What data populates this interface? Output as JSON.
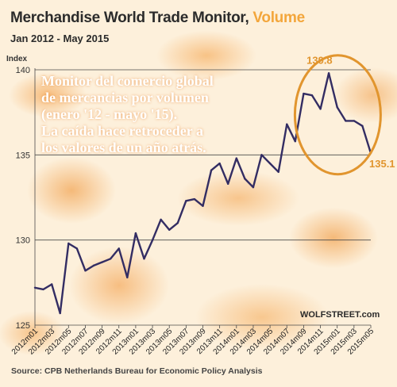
{
  "title_main": "Merchandise World Trade Monitor,",
  "title_emph": "Volume",
  "subtitle": "Jan 2012 - May 2015",
  "source": "Source: CPB Netherlands Bureau for Economic Policy Analysis",
  "brand": "WOLFSTREET.com",
  "note_lines": [
    "Monitor del comercio global",
    "de mercancias por volumen",
    "(enero '12 - mayo '15).",
    "La caída hace retroceder a",
    "los valores de un año atrás."
  ],
  "colors": {
    "line": "#332d63",
    "accent": "#e1952e",
    "grid": "#4a4a4a"
  },
  "chart_data": {
    "type": "line",
    "ylabel": "Index",
    "ylim": [
      125,
      140
    ],
    "yticks": [
      125,
      130,
      135,
      140
    ],
    "grid": true,
    "x_tick_labels": [
      "2012m01",
      "2012m03",
      "2012m05",
      "2012m07",
      "2012m09",
      "2012m11",
      "2013m01",
      "2013m03",
      "2013m05",
      "2013m07",
      "2013m09",
      "2013m11",
      "2014m01",
      "2014m03",
      "2014m05",
      "2014m07",
      "2014m09",
      "2014m11",
      "2015m01",
      "2015m03",
      "2015m05"
    ],
    "series": [
      {
        "values": [
          127.2,
          127.1,
          127.4,
          125.7,
          129.8,
          129.5,
          128.2,
          128.5,
          128.7,
          128.9,
          129.5,
          127.8,
          130.4,
          128.9,
          130.0,
          131.2,
          130.6,
          131.0,
          132.3,
          132.4,
          132.0,
          134.1,
          134.5,
          133.3,
          134.8,
          133.6,
          133.1,
          135.0,
          134.5,
          134.0,
          136.8,
          135.8,
          138.6,
          138.5,
          137.7,
          139.8,
          137.8,
          137.0,
          137.0,
          136.7,
          135.1
        ]
      }
    ],
    "annotations": [
      {
        "text": "139.8",
        "x_index": 35,
        "value": 139.8
      },
      {
        "text": "135.1",
        "x_index": 40,
        "value": 135.1
      }
    ]
  }
}
